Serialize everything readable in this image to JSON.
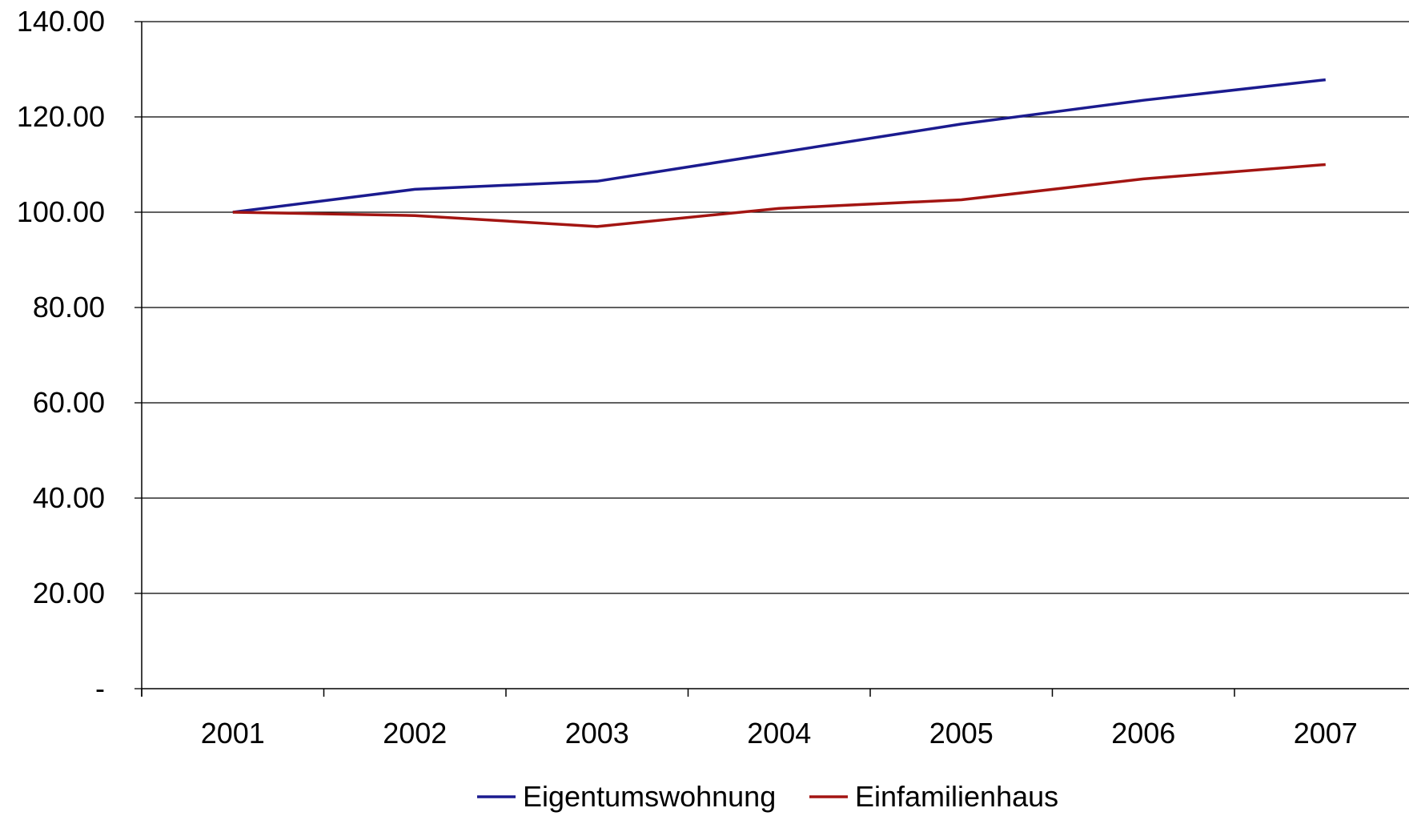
{
  "chart_data": {
    "type": "line",
    "title": "",
    "xlabel": "",
    "ylabel": "",
    "categories": [
      "2001",
      "2002",
      "2003",
      "2004",
      "2005",
      "2006",
      "2007"
    ],
    "ylim": [
      0,
      140
    ],
    "yticks": [
      0,
      20,
      40,
      60,
      80,
      100,
      120,
      140
    ],
    "ytick_labels": [
      "-",
      "20.00",
      "40.00",
      "60.00",
      "80.00",
      "100.00",
      "120.00",
      "140.00"
    ],
    "grid": "horizontal",
    "legend_position": "bottom",
    "series": [
      {
        "name": "Eigentumswohnung",
        "color": "#1b1b8f",
        "values": [
          100.0,
          104.8,
          106.5,
          112.5,
          118.5,
          123.5,
          127.8
        ]
      },
      {
        "name": "Einfamilienhaus",
        "color": "#a31512",
        "values": [
          100.0,
          99.3,
          97.0,
          100.8,
          102.6,
          107.0,
          110.0
        ]
      }
    ]
  }
}
